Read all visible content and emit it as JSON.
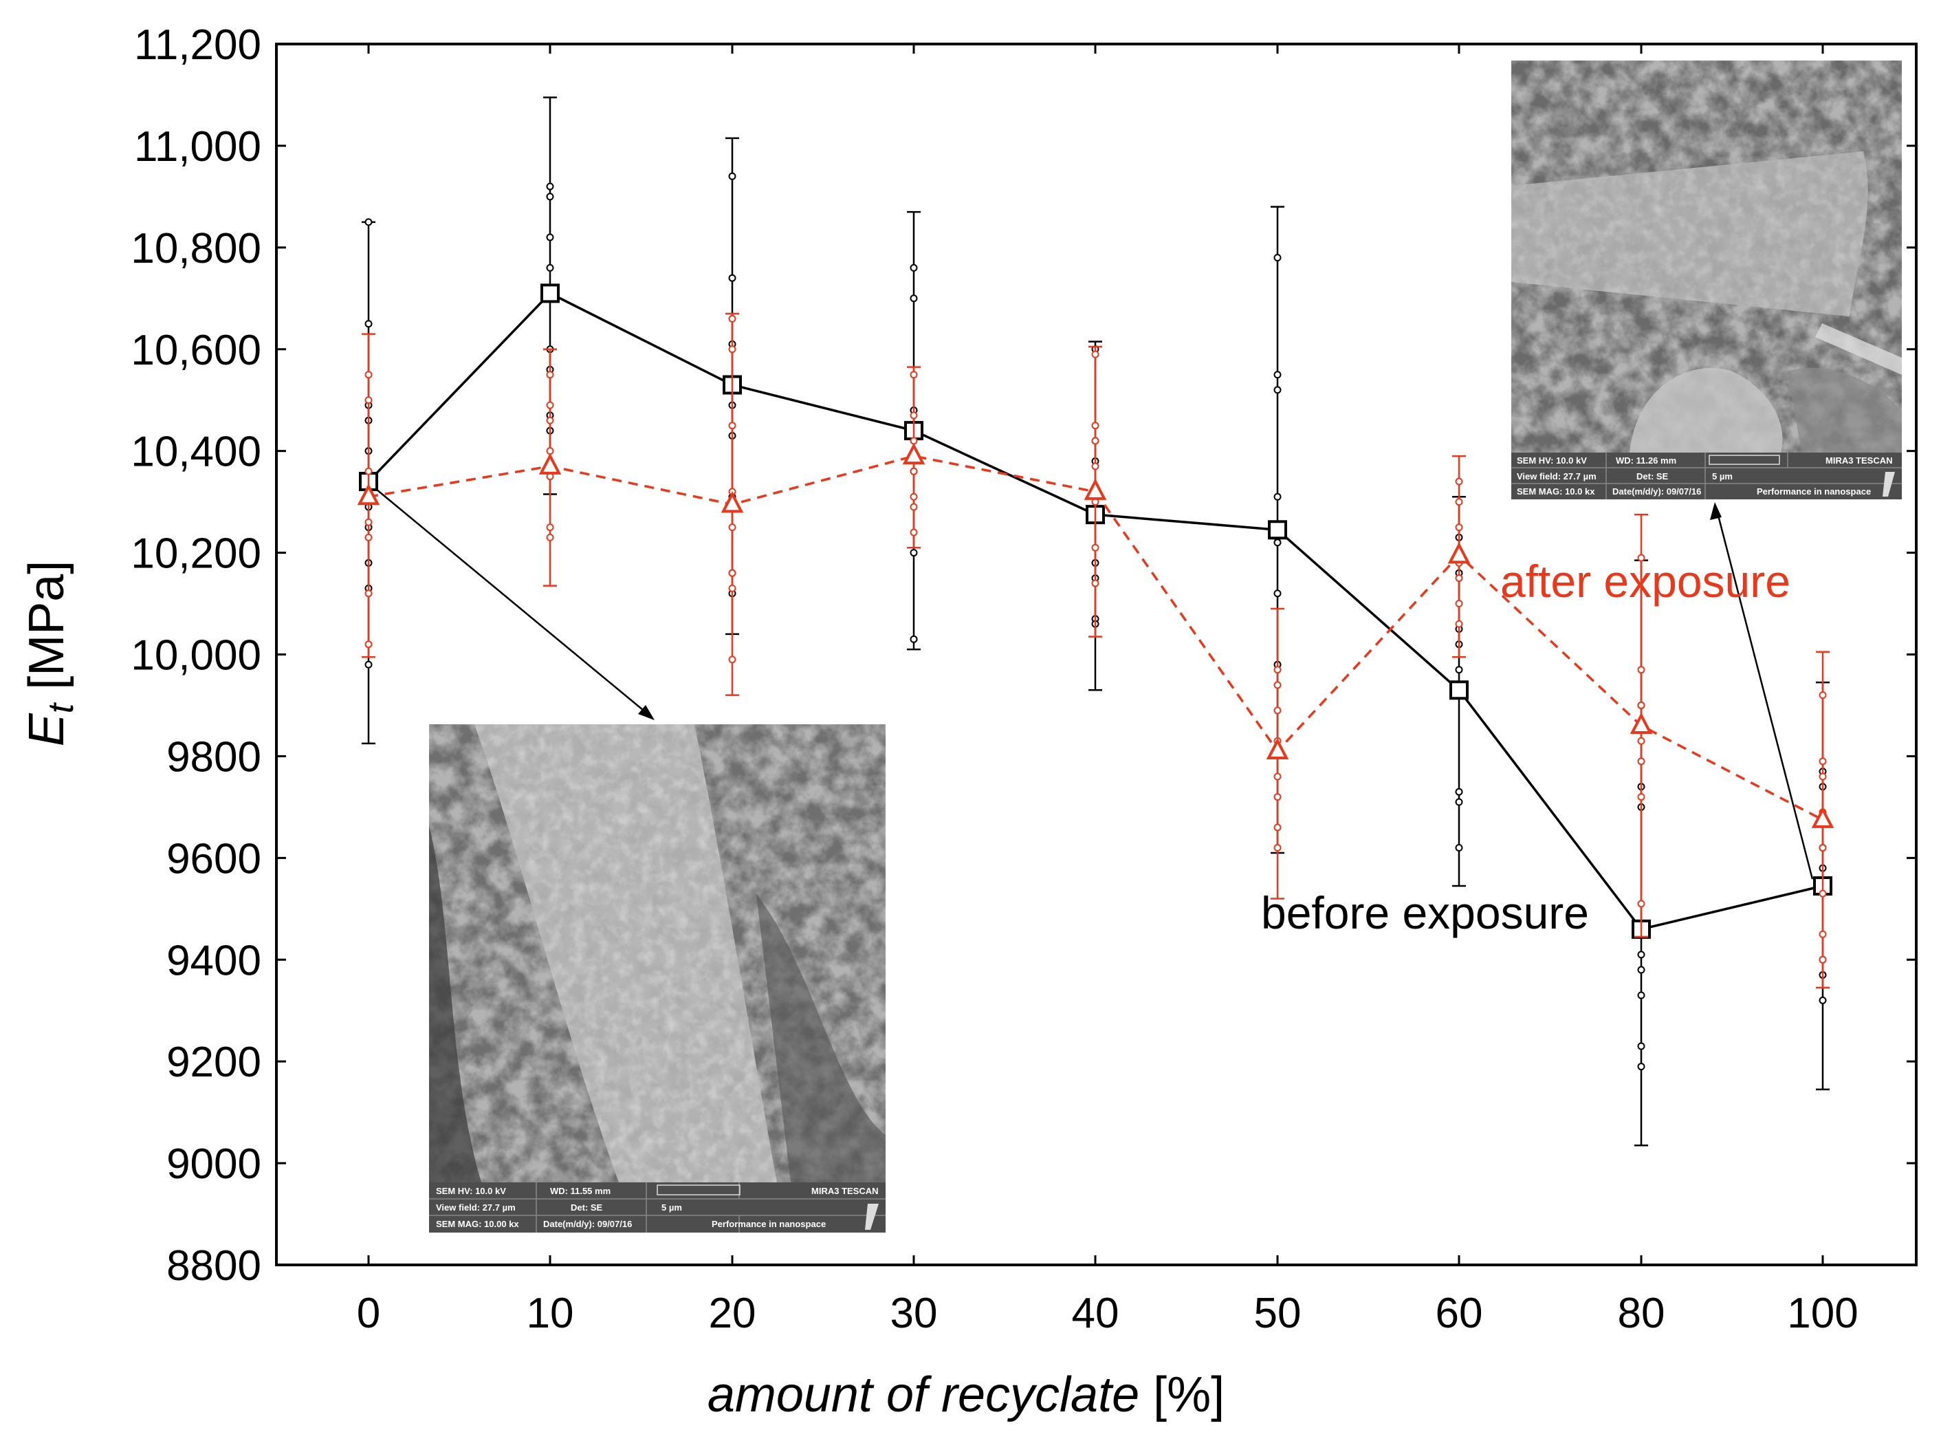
{
  "chart_data": {
    "type": "line",
    "title": "",
    "xlabel": "amount of recyclate",
    "xlabel_unit": "[%]",
    "ylabel_main": "E",
    "ylabel_sub": "t",
    "ylabel_unit": "[MPa]",
    "categories": [
      "0",
      "10",
      "20",
      "30",
      "40",
      "50",
      "60",
      "80",
      "100"
    ],
    "ylim": [
      8800,
      11200
    ],
    "yticks": [
      8800,
      9000,
      9200,
      9400,
      9600,
      9800,
      10000,
      10200,
      10400,
      10600,
      10800,
      11000,
      11200
    ],
    "ytick_labels": [
      "8800",
      "9000",
      "9200",
      "9400",
      "9600",
      "9800",
      "10,000",
      "10,200",
      "10,400",
      "10,600",
      "10,800",
      "11,000",
      "11,200"
    ],
    "series": [
      {
        "name": "before exposure",
        "marker": "square",
        "line": "solid",
        "color": "#000000",
        "values": [
          10340,
          10710,
          10530,
          10440,
          10275,
          10245,
          9930,
          9460,
          9545
        ],
        "err_low": [
          9825,
          10315,
          10040,
          10010,
          9930,
          9610,
          9545,
          9035,
          9145
        ],
        "err_high": [
          10850,
          11095,
          11015,
          10870,
          10615,
          10880,
          10310,
          10185,
          9945
        ],
        "points": [
          [
            10850,
            10650,
            10490,
            10460,
            10400,
            10320,
            10290,
            10250,
            10180,
            10130,
            9980
          ],
          [
            10920,
            10900,
            10820,
            10760,
            10600,
            10560,
            10470,
            10440,
            10360
          ],
          [
            10940,
            10740,
            10610,
            10490,
            10430,
            10310,
            10160,
            10120
          ],
          [
            10760,
            10700,
            10480,
            10440,
            10360,
            10200,
            10030
          ],
          [
            10600,
            10420,
            10380,
            10330,
            10180,
            10150,
            10070,
            10060
          ],
          [
            10780,
            10550,
            10520,
            10310,
            10230,
            10220,
            10120,
            9980
          ],
          [
            10230,
            10160,
            10050,
            10020,
            9970,
            9730,
            9710,
            9620
          ],
          [
            9900,
            9740,
            9700,
            9410,
            9380,
            9330,
            9230,
            9190
          ],
          [
            9770,
            9740,
            9620,
            9580,
            9400,
            9370,
            9320
          ]
        ]
      },
      {
        "name": "after exposure",
        "marker": "triangle",
        "line": "dashed",
        "color": "#e8391c",
        "values": [
          10310,
          10370,
          10295,
          10390,
          10320,
          9810,
          10195,
          9860,
          9675
        ],
        "err_low": [
          9995,
          10135,
          9920,
          10210,
          10035,
          9520,
          9995,
          9445,
          9345
        ],
        "err_high": [
          10630,
          10600,
          10670,
          10565,
          10605,
          10090,
          10390,
          10275,
          10005
        ],
        "points": [
          [
            10550,
            10500,
            10360,
            10260,
            10230,
            10120,
            10020
          ],
          [
            10550,
            10490,
            10460,
            10400,
            10350,
            10250,
            10230
          ],
          [
            10660,
            10600,
            10450,
            10320,
            10250,
            10160,
            10130,
            9990
          ],
          [
            10550,
            10470,
            10420,
            10360,
            10310,
            10290,
            10240
          ],
          [
            10590,
            10450,
            10420,
            10370,
            10300,
            10210,
            10140
          ],
          [
            9970,
            9940,
            9890,
            9830,
            9760,
            9720,
            9660,
            9620
          ],
          [
            10340,
            10300,
            10250,
            10180,
            10150,
            10100,
            10060
          ],
          [
            10190,
            9970,
            9900,
            9830,
            9790,
            9720,
            9510
          ],
          [
            9920,
            9790,
            9760,
            9690,
            9620,
            9530,
            9450,
            9400
          ]
        ]
      }
    ],
    "annotations": [
      {
        "text": "before exposure",
        "color": "#000000"
      },
      {
        "text": "after exposure",
        "color": "#e8391c"
      }
    ]
  },
  "sem_left": {
    "hv": "SEM HV: 10.0 kV",
    "wd": "WD: 11.55 mm",
    "brand": "MIRA3 TESCAN",
    "view_field": "View field: 27.7 µm",
    "det": "Det: SE",
    "scale": "5 µm",
    "mag": "SEM MAG: 10.00 kx",
    "date": "Date(m/d/y): 09/07/16",
    "slogan": "Performance in nanospace"
  },
  "sem_right": {
    "hv": "SEM HV: 10.0 kV",
    "wd": "WD: 11.26 mm",
    "brand": "MIRA3 TESCAN",
    "view_field": "View field: 27.7 µm",
    "det": "Det: SE",
    "scale": "5 µm",
    "mag": "SEM MAG: 10.0 kx",
    "date": "Date(m/d/y): 09/07/16",
    "slogan": "Performance in nanospace"
  }
}
